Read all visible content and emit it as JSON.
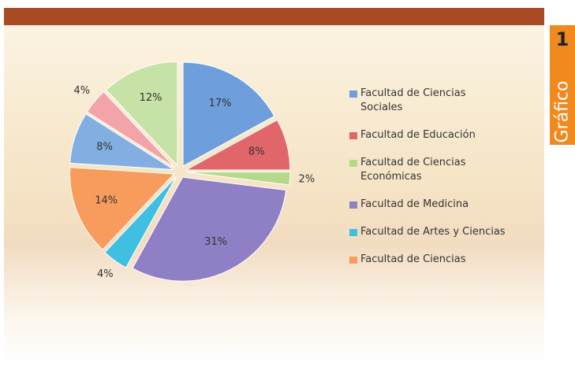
{
  "chart_data": {
    "type": "pie",
    "categories": [
      "Facultad de Ciencias Sociales",
      "Facultad de Educación",
      "Facultad de Ciencias Económicas",
      "Facultad de Medicina",
      "Facultad de Artes y Ciencias",
      "Facultad de Ciencias",
      null,
      null,
      null
    ],
    "values": [
      17,
      8,
      2,
      31,
      4,
      14,
      8,
      4,
      12
    ],
    "value_labels": [
      "17%",
      "8%",
      "2%",
      "31%",
      "4%",
      "14%",
      "8%",
      "4%",
      "12%"
    ],
    "colors": [
      "#6e9fdc",
      "#e0666a",
      "#b4d98a",
      "#8f7fc4",
      "#3fbfe2",
      "#f89c5e",
      "#82aee2",
      "#f2a4a8",
      "#c6e2a6"
    ],
    "legend_position": "right"
  },
  "badge": {
    "number": "1",
    "label": "Gráfico"
  }
}
